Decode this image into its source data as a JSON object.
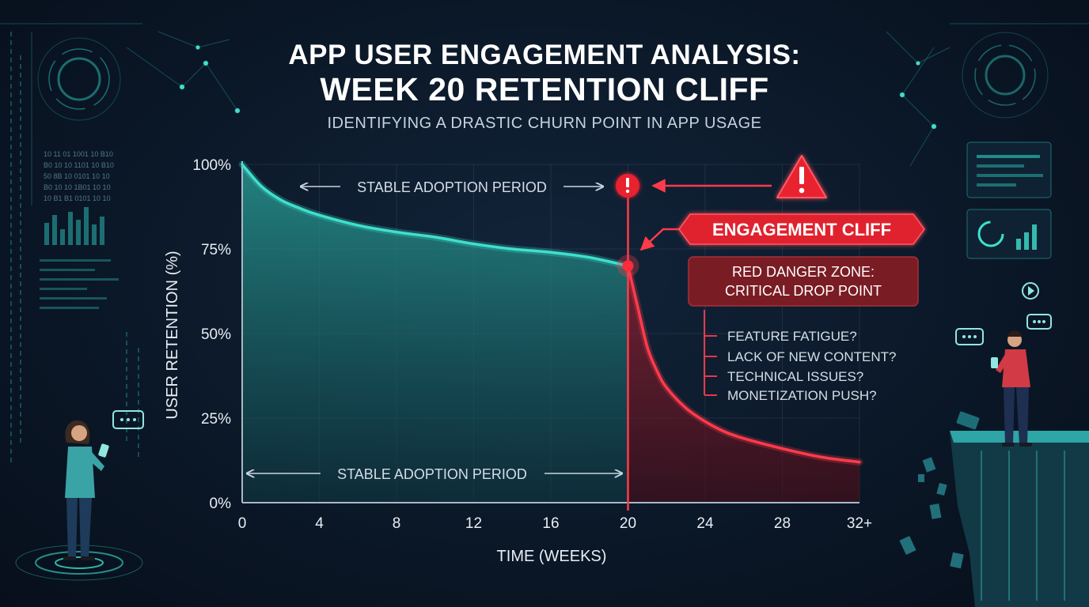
{
  "header": {
    "title_line1": "APP USER ENGAGEMENT ANALYSIS:",
    "title_line2": "WEEK 20 RETENTION CLIFF",
    "subtitle": "IDENTIFYING A DRASTIC CHURN POINT IN APP USAGE"
  },
  "chart_data": {
    "type": "line",
    "title": "APP USER ENGAGEMENT ANALYSIS: WEEK 20 RETENTION CLIFF",
    "subtitle": "IDENTIFYING A DRASTIC CHURN POINT IN APP USAGE",
    "xlabel": "TIME (WEEKS)",
    "ylabel": "USER RETENTION (%)",
    "xlim": [
      0,
      32
    ],
    "ylim": [
      0,
      100
    ],
    "x_ticks": [
      0,
      4,
      8,
      12,
      16,
      20,
      24,
      28,
      32
    ],
    "x_tick_labels": [
      "0",
      "4",
      "8",
      "12",
      "16",
      "20",
      "24",
      "28",
      "32+"
    ],
    "y_ticks": [
      0,
      25,
      50,
      75,
      100
    ],
    "y_tick_labels": [
      "0%",
      "25%",
      "50%",
      "75%",
      "100%"
    ],
    "grid": true,
    "series": [
      {
        "segment": "stable",
        "color": "#3ee0cc",
        "x": [
          0,
          1,
          2,
          3,
          4,
          6,
          8,
          10,
          12,
          14,
          16,
          18,
          20
        ],
        "y": [
          100,
          93.5,
          89.5,
          87,
          85,
          82,
          80,
          78.5,
          76.5,
          75,
          74,
          72.5,
          70
        ]
      },
      {
        "segment": "cliff",
        "color": "#ff3b4a",
        "x": [
          20,
          20.5,
          21,
          21.5,
          22,
          23,
          24,
          25,
          26,
          28,
          30,
          32
        ],
        "y": [
          70,
          58,
          46,
          39,
          34,
          28,
          24,
          21,
          19,
          16,
          13.5,
          12
        ]
      }
    ],
    "cliff_week": 20,
    "annotations": {
      "period_top": "STABLE ADOPTION PERIOD",
      "period_bottom": "STABLE ADOPTION PERIOD",
      "cliff_label": "ENGAGEMENT CLIFF",
      "danger_zone_line1": "RED DANGER ZONE:",
      "danger_zone_line2": "CRITICAL DROP POINT",
      "reasons": [
        "FEATURE FATIGUE?",
        "LACK OF NEW CONTENT?",
        "TECHNICAL ISSUES?",
        "MONETIZATION PUSH?"
      ]
    }
  },
  "colors": {
    "accent": "#3ee0cc",
    "danger": "#ff3b4a",
    "danger_box": "#7a1c24",
    "background": "#0b1828"
  },
  "decor": {
    "left_illustration": "woman-with-phone",
    "right_illustration": "man-on-cliff-with-phone",
    "icons": [
      "warning-icon",
      "alert-dot-icon",
      "chat-bubble-icon",
      "play-icon"
    ]
  }
}
